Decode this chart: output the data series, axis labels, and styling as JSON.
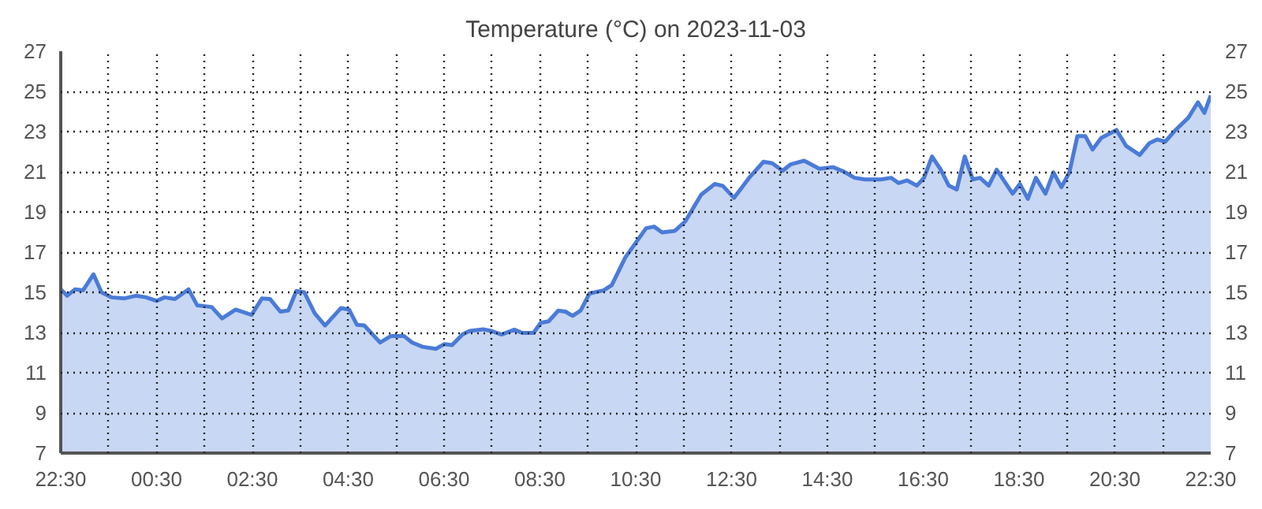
{
  "chart_data": {
    "type": "area",
    "title": "Temperature (°C) on 2023-11-03",
    "x": [
      "2023-11-02T22:30",
      "2023-11-02T22:38",
      "2023-11-02T22:48",
      "2023-11-02T22:58",
      "2023-11-02T23:11",
      "2023-11-02T23:21",
      "2023-11-02T23:34",
      "2023-11-02T23:50",
      "2023-11-03T00:04",
      "2023-11-03T00:17",
      "2023-11-03T00:30",
      "2023-11-03T00:40",
      "2023-11-03T00:53",
      "2023-11-03T01:10",
      "2023-11-03T01:21",
      "2023-11-03T01:39",
      "2023-11-03T01:52",
      "2023-11-03T02:09",
      "2023-11-03T02:29",
      "2023-11-03T02:42",
      "2023-11-03T02:52",
      "2023-11-03T03:05",
      "2023-11-03T03:15",
      "2023-11-03T03:25",
      "2023-11-03T03:35",
      "2023-11-03T03:48",
      "2023-11-03T04:01",
      "2023-11-03T04:21",
      "2023-11-03T04:31",
      "2023-11-03T04:41",
      "2023-11-03T04:50",
      "2023-11-03T05:10",
      "2023-11-03T05:23",
      "2023-11-03T05:40",
      "2023-11-03T05:50",
      "2023-11-03T06:03",
      "2023-11-03T06:20",
      "2023-11-03T06:30",
      "2023-11-03T06:40",
      "2023-11-03T06:53",
      "2023-11-03T07:02",
      "2023-11-03T07:19",
      "2023-11-03T07:29",
      "2023-11-03T07:42",
      "2023-11-03T07:58",
      "2023-11-03T08:08",
      "2023-11-03T08:22",
      "2023-11-03T08:31",
      "2023-11-03T08:41",
      "2023-11-03T08:53",
      "2023-11-03T09:02",
      "2023-11-03T09:11",
      "2023-11-03T09:21",
      "2023-11-03T09:32",
      "2023-11-03T09:50",
      "2023-11-03T10:00",
      "2023-11-03T10:17",
      "2023-11-03T10:43",
      "2023-11-03T10:53",
      "2023-11-03T11:03",
      "2023-11-03T11:19",
      "2023-11-03T11:32",
      "2023-11-03T11:52",
      "2023-11-03T12:09",
      "2023-11-03T12:19",
      "2023-11-03T12:33",
      "2023-11-03T12:52",
      "2023-11-03T13:10",
      "2023-11-03T13:21",
      "2023-11-03T13:34",
      "2023-11-03T13:44",
      "2023-11-03T14:01",
      "2023-11-03T14:20",
      "2023-11-03T14:37",
      "2023-11-03T14:50",
      "2023-11-03T15:04",
      "2023-11-03T15:17",
      "2023-11-03T15:37",
      "2023-11-03T15:50",
      "2023-11-03T15:59",
      "2023-11-03T16:10",
      "2023-11-03T16:22",
      "2023-11-03T16:31",
      "2023-11-03T16:41",
      "2023-11-03T16:52",
      "2023-11-03T17:02",
      "2023-11-03T17:12",
      "2023-11-03T17:22",
      "2023-11-03T17:32",
      "2023-11-03T17:41",
      "2023-11-03T17:52",
      "2023-11-03T18:02",
      "2023-11-03T18:22",
      "2023-11-03T18:31",
      "2023-11-03T18:41",
      "2023-11-03T18:51",
      "2023-11-03T19:03",
      "2023-11-03T19:13",
      "2023-11-03T19:23",
      "2023-11-03T19:33",
      "2023-11-03T19:43",
      "2023-11-03T19:53",
      "2023-11-03T20:02",
      "2023-11-03T20:13",
      "2023-11-03T20:32",
      "2023-11-03T20:44",
      "2023-11-03T21:01",
      "2023-11-03T21:13",
      "2023-11-03T21:23",
      "2023-11-03T21:33",
      "2023-11-03T21:46",
      "2023-11-03T22:02",
      "2023-11-03T22:14",
      "2023-11-03T22:22",
      "2023-11-03T22:30"
    ],
    "series": [
      {
        "color": "#4a7bd8",
        "values": [
          15.15,
          14.83,
          15.15,
          15.1,
          15.9,
          15.0,
          14.75,
          14.7,
          14.83,
          14.75,
          14.57,
          14.75,
          14.67,
          15.15,
          14.35,
          14.27,
          13.7,
          14.14,
          13.88,
          14.7,
          14.67,
          14.04,
          14.1,
          15.07,
          15.0,
          13.96,
          13.35,
          14.22,
          14.14,
          13.38,
          13.35,
          12.5,
          12.82,
          12.82,
          12.5,
          12.29,
          12.19,
          12.42,
          12.37,
          12.9,
          13.08,
          13.16,
          13.08,
          12.9,
          13.14,
          12.98,
          12.98,
          13.48,
          13.56,
          14.09,
          14.04,
          13.83,
          14.09,
          14.94,
          15.1,
          15.36,
          16.74,
          18.19,
          18.27,
          17.98,
          18.06,
          18.53,
          19.86,
          20.39,
          20.3,
          19.7,
          20.7,
          21.5,
          21.42,
          21.05,
          21.37,
          21.55,
          21.15,
          21.23,
          21.02,
          20.7,
          20.62,
          20.62,
          20.7,
          20.44,
          20.57,
          20.31,
          20.7,
          21.76,
          21.1,
          20.31,
          20.12,
          21.76,
          20.62,
          20.7,
          20.31,
          21.1,
          19.91,
          20.39,
          19.65,
          20.7,
          19.91,
          20.97,
          20.23,
          20.97,
          22.77,
          22.77,
          22.11,
          22.69,
          23.08,
          22.29,
          21.84,
          22.42,
          22.61,
          22.5,
          23.08,
          23.69,
          24.46,
          23.93,
          24.8
        ]
      }
    ],
    "xlim": [
      "2023-11-02T22:30",
      "2023-11-03T22:30"
    ],
    "xticks": [
      {
        "value": "2023-11-02T22:30",
        "label": "22:30"
      },
      {
        "value": "2023-11-02T23:30",
        "label": null
      },
      {
        "value": "2023-11-03T00:30",
        "label": "00:30"
      },
      {
        "value": "2023-11-03T01:30",
        "label": null
      },
      {
        "value": "2023-11-03T02:30",
        "label": "02:30"
      },
      {
        "value": "2023-11-03T03:30",
        "label": null
      },
      {
        "value": "2023-11-03T04:30",
        "label": "04:30"
      },
      {
        "value": "2023-11-03T05:30",
        "label": null
      },
      {
        "value": "2023-11-03T06:30",
        "label": "06:30"
      },
      {
        "value": "2023-11-03T07:30",
        "label": null
      },
      {
        "value": "2023-11-03T08:30",
        "label": "08:30"
      },
      {
        "value": "2023-11-03T09:30",
        "label": null
      },
      {
        "value": "2023-11-03T10:30",
        "label": "10:30"
      },
      {
        "value": "2023-11-03T11:30",
        "label": null
      },
      {
        "value": "2023-11-03T12:30",
        "label": "12:30"
      },
      {
        "value": "2023-11-03T13:30",
        "label": null
      },
      {
        "value": "2023-11-03T14:30",
        "label": "14:30"
      },
      {
        "value": "2023-11-03T15:30",
        "label": null
      },
      {
        "value": "2023-11-03T16:30",
        "label": "16:30"
      },
      {
        "value": "2023-11-03T17:30",
        "label": null
      },
      {
        "value": "2023-11-03T18:30",
        "label": "18:30"
      },
      {
        "value": "2023-11-03T19:30",
        "label": null
      },
      {
        "value": "2023-11-03T20:30",
        "label": "20:30"
      },
      {
        "value": "2023-11-03T21:30",
        "label": null
      },
      {
        "value": "2023-11-03T22:30",
        "label": "22:30"
      }
    ],
    "ylim": [
      7,
      27
    ],
    "yticks": [
      7,
      9,
      11,
      13,
      15,
      17,
      19,
      21,
      23,
      25,
      27
    ],
    "y2lim": [
      7,
      27
    ],
    "y2ticks": [
      7,
      9,
      11,
      13,
      15,
      17,
      19,
      21,
      23,
      25,
      27
    ],
    "grid": true,
    "line_style": "solid"
  }
}
